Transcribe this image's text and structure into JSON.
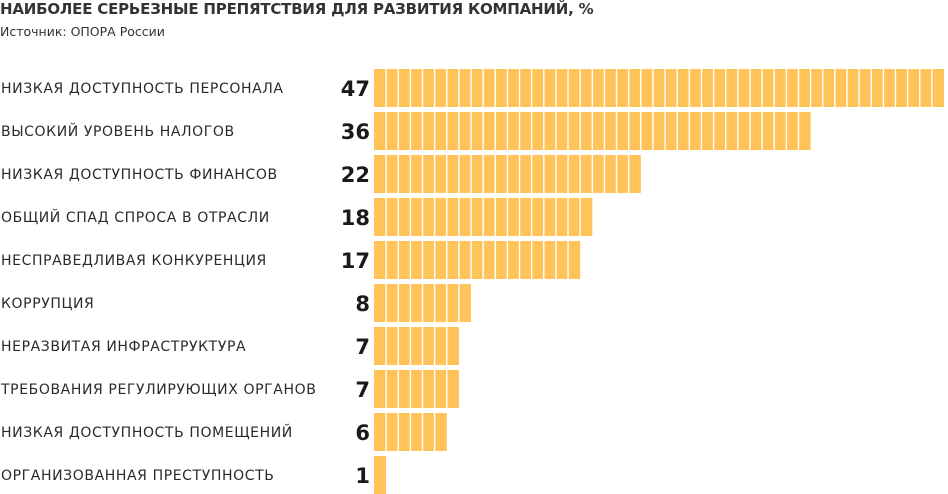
{
  "title": "НАИБОЛЕЕ СЕРЬЕЗНЫЕ ПРЕПЯТСТВИЯ ДЛЯ РАЗВИТИЯ КОМПАНИЙ, %",
  "subtitle": "Источник: ОПОРА России",
  "colors": {
    "bar": "#FFC35A",
    "bar_divider": "#ffffff"
  },
  "chart_data": {
    "type": "bar",
    "orientation": "horizontal",
    "title": "НАИБОЛЕЕ СЕРЬЕЗНЫЕ ПРЕПЯТСТВИЯ ДЛЯ РАЗВИТИЯ КОМПАНИЙ, %",
    "subtitle": "Источник: ОПОРА России",
    "categories": [
      "НИЗКАЯ ДОСТУПНОСТЬ ПЕРСОНАЛА",
      "ВЫСОКИЙ УРОВЕНЬ НАЛОГОВ",
      "НИЗКАЯ ДОСТУПНОСТЬ ФИНАНСОВ",
      "ОБЩИЙ СПАД СПРОСА В ОТРАСЛИ",
      "НЕСПРАВЕДЛИВАЯ КОНКУРЕНЦИЯ",
      "КОРРУПЦИЯ",
      "НЕРАЗВИТАЯ ИНФРАСТРУКТУРА",
      "ТРЕБОВАНИЯ РЕГУЛИРУЮЩИХ ОРГАНОВ",
      "НИЗКАЯ ДОСТУПНОСТЬ ПОМЕЩЕНИЙ",
      "ОРГАНИЗОВАННАЯ ПРЕСТУПНОСТЬ"
    ],
    "values": [
      47,
      36,
      22,
      18,
      17,
      8,
      7,
      7,
      6,
      1
    ],
    "xlabel": "",
    "ylabel": "",
    "xlim": [
      0,
      47
    ],
    "grid": false,
    "legend": "none"
  }
}
